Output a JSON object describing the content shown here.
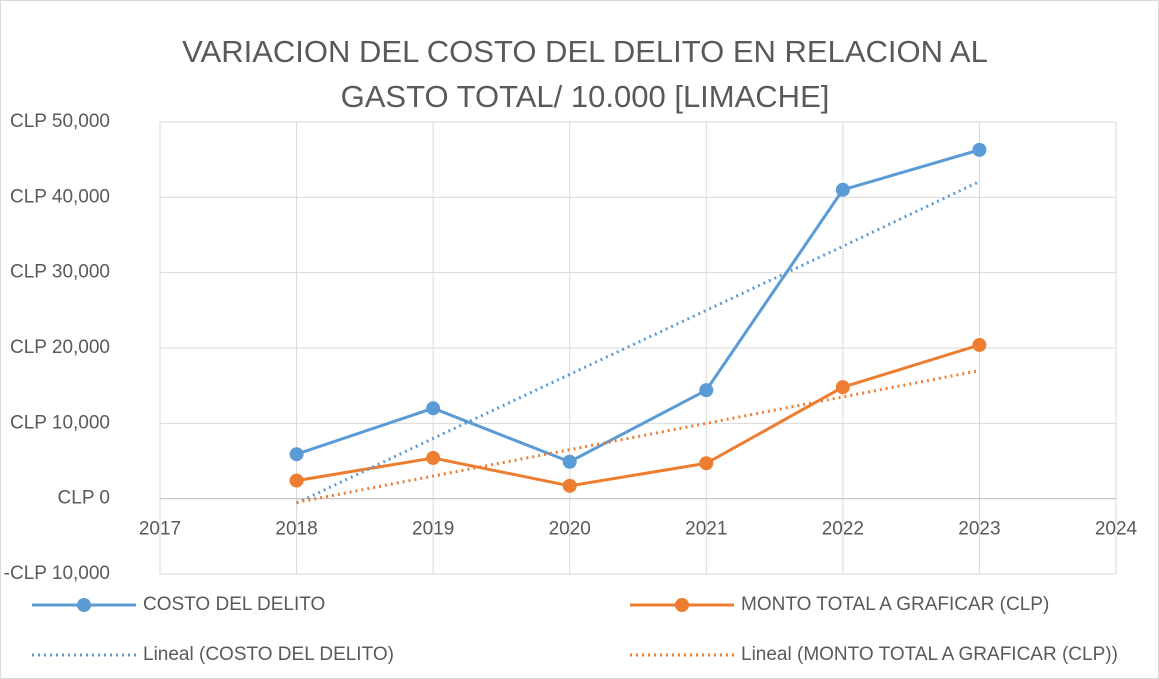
{
  "chart_data": {
    "type": "line",
    "title": "VARIACION DEL COSTO DEL DELITO EN RELACION AL",
    "subtitle": "GASTO TOTAL/ 10.000  [LIMACHE]",
    "x": [
      2018,
      2019,
      2020,
      2021,
      2022,
      2023
    ],
    "series": [
      {
        "name": "COSTO DEL DELITO",
        "color": "#5b9bd5",
        "style": "solid",
        "marker": true,
        "values": [
          5900,
          12000,
          4900,
          14400,
          41000,
          46300
        ]
      },
      {
        "name": "MONTO TOTAL A GRAFICAR (CLP)",
        "color": "#ed7d31",
        "style": "solid",
        "marker": true,
        "values": [
          2400,
          5400,
          1700,
          4700,
          14800,
          20400
        ]
      },
      {
        "name": "Lineal (COSTO DEL DELITO)",
        "color": "#5b9bd5",
        "style": "dotted",
        "marker": false,
        "values": [
          -600,
          8000,
          16500,
          25000,
          33500,
          42100
        ]
      },
      {
        "name": "Lineal (MONTO TOTAL A GRAFICAR (CLP))",
        "color": "#ed7d31",
        "style": "dotted",
        "marker": false,
        "values": [
          -500,
          3000,
          6500,
          10000,
          13500,
          17000
        ]
      }
    ],
    "xlim": [
      2017,
      2024
    ],
    "xticks": [
      2017,
      2018,
      2019,
      2020,
      2021,
      2022,
      2023,
      2024
    ],
    "ylim": [
      -10000,
      50000
    ],
    "yticks": [
      {
        "value": -10000,
        "label": "-CLP 10,000"
      },
      {
        "value": 0,
        "label": "CLP 0"
      },
      {
        "value": 10000,
        "label": "CLP 10,000"
      },
      {
        "value": 20000,
        "label": "CLP 20,000"
      },
      {
        "value": 30000,
        "label": "CLP 30,000"
      },
      {
        "value": 40000,
        "label": "CLP 40,000"
      },
      {
        "value": 50000,
        "label": "CLP 50,000"
      }
    ],
    "grid": true,
    "legend": "bottom"
  }
}
